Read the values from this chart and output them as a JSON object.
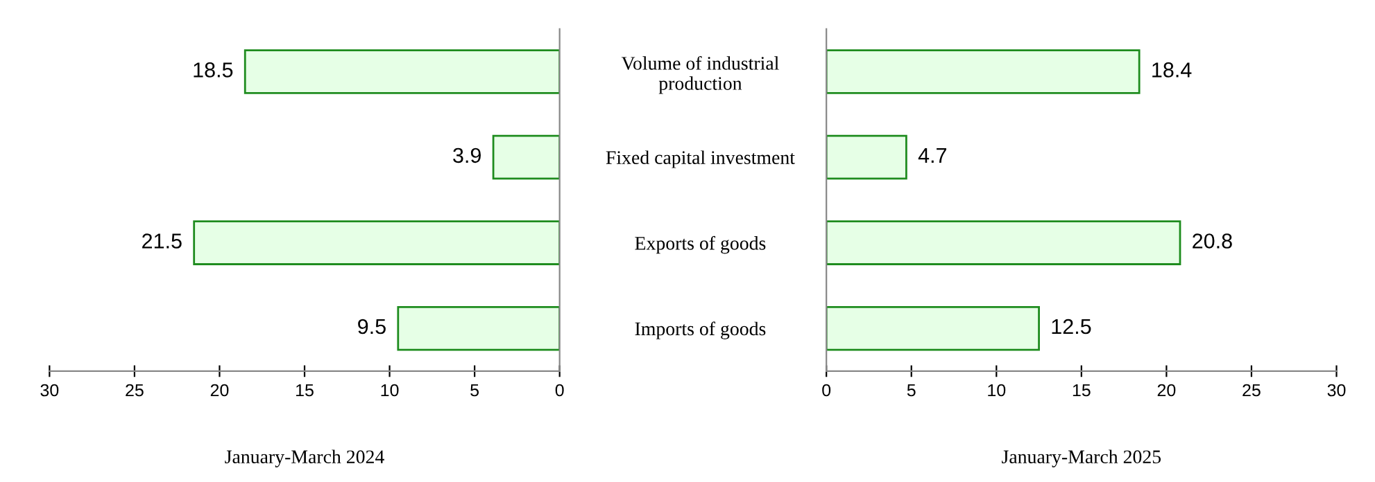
{
  "chart_data": [
    {
      "type": "bar",
      "orientation": "horizontal",
      "categories": [
        "Volume of industrial\nproduction",
        "Fixed capital investment",
        "Exports of goods",
        "Imports of goods"
      ],
      "values": [
        18.5,
        3.9,
        21.5,
        9.5
      ],
      "color": "#e6ffe6",
      "xlim": [
        30,
        0
      ],
      "xticks": [
        30,
        25,
        20,
        15,
        10,
        5,
        0
      ],
      "xlabel": "January-March 2024",
      "data_labels": true,
      "grid": false,
      "legend": false
    },
    {
      "type": "bar",
      "orientation": "horizontal",
      "categories": [
        null,
        null,
        null,
        null
      ],
      "values": [
        18.4,
        4.7,
        20.8,
        12.5
      ],
      "color": "#e6ffe6",
      "xlim": [
        0,
        30
      ],
      "xticks": [
        0,
        5,
        10,
        15,
        20,
        25,
        30
      ],
      "xlabel": "January-March 2025",
      "data_labels": true,
      "grid": false,
      "legend": false,
      "tick_labels": "x"
    }
  ]
}
